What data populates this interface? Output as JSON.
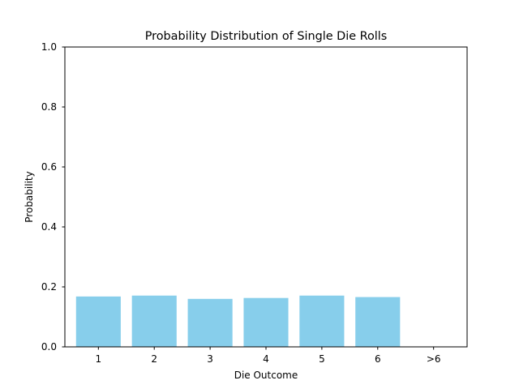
{
  "chart_data": {
    "type": "bar",
    "title": "Probability Distribution of Single Die Rolls",
    "xlabel": "Die Outcome",
    "ylabel": "Probability",
    "categories": [
      "1",
      "2",
      "3",
      "4",
      "5",
      "6",
      ">6"
    ],
    "values": [
      0.168,
      0.171,
      0.16,
      0.163,
      0.171,
      0.166,
      0.0
    ],
    "ylim": [
      0,
      1.0
    ],
    "yticks": [
      "0.0",
      "0.2",
      "0.4",
      "0.6",
      "0.8",
      "1.0"
    ],
    "bar_color": "#87ceeb",
    "grid": false,
    "legend": "none"
  }
}
